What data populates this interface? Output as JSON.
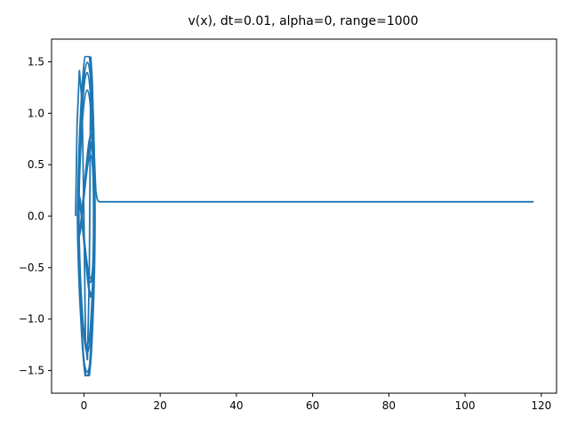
{
  "chart_data": {
    "type": "line",
    "title": "v(x), dt=0.01, alpha=0, range=1000",
    "xlabel": "",
    "ylabel": "",
    "xlim": [
      -8.5,
      124
    ],
    "ylim": [
      -1.72,
      1.72
    ],
    "x_ticks": [
      0,
      20,
      40,
      60,
      80,
      100,
      120
    ],
    "y_ticks": [
      -1.5,
      -1.0,
      -0.5,
      0.0,
      0.5,
      1.0,
      1.5
    ],
    "x_tick_labels": [
      "0",
      "20",
      "40",
      "60",
      "80",
      "100",
      "120"
    ],
    "y_tick_labels": [
      "−1.5",
      "−1.0",
      "−0.5",
      "0.0",
      "0.5",
      "1.0",
      "1.5"
    ],
    "grid": false,
    "legend": "none",
    "colors": {
      "series": "#1f77b4",
      "axes": "#000000",
      "background": "#ffffff"
    },
    "series": [
      {
        "description_points": "oscillatory transient near x=0 followed by a flat tail",
        "x": [
          -2.2,
          -1.8,
          -1.2,
          -0.5,
          0,
          0.4,
          0.9,
          1.4,
          1.8,
          2.2,
          2.7,
          3.1,
          3.5,
          4.0,
          4.5,
          5.0,
          6.0,
          10,
          20,
          40,
          60,
          80,
          100,
          118
        ],
        "y": [
          0.0,
          0.9,
          1.42,
          1.1,
          0.0,
          -1.2,
          -1.4,
          -0.6,
          1.55,
          1.3,
          0.6,
          0.25,
          0.16,
          0.14,
          0.14,
          0.14,
          0.14,
          0.14,
          0.14,
          0.14,
          0.14,
          0.14,
          0.14,
          0.14
        ]
      }
    ]
  }
}
